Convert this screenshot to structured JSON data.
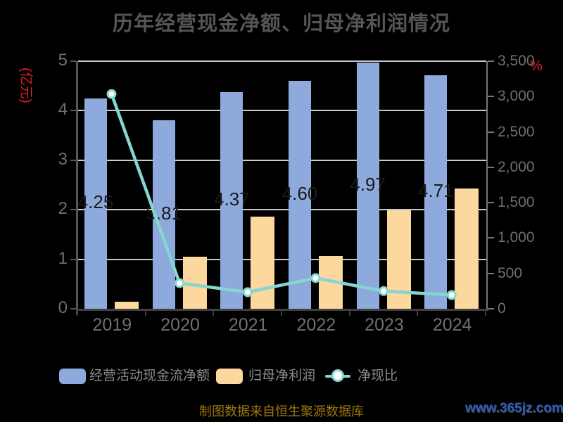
{
  "title": "历年经营现金净额、归母净利润情况",
  "left_axis": {
    "unit_label": "(亿元)",
    "ticks": [
      "5",
      "4",
      "3",
      "2",
      "1",
      "0"
    ],
    "color": "#e02121"
  },
  "right_axis": {
    "unit_label": "%",
    "ticks": [
      "3,500",
      "3,000",
      "2,500",
      "2,000",
      "1,500",
      "1,000",
      "500",
      "0"
    ],
    "color": "#e02121"
  },
  "legend": [
    {
      "label": "经营活动现金流净额",
      "type": "bar",
      "color": "#8EA9DB"
    },
    {
      "label": "归母净利润",
      "type": "bar",
      "color": "#FCD79E"
    },
    {
      "label": "净现比",
      "type": "line",
      "color": "#85D5D1"
    }
  ],
  "footer": {
    "source": "制图数据来自恒生聚源数据库",
    "watermark": "www.365jz.com"
  },
  "colors": {
    "background": "#000000",
    "title": "#555555",
    "axis_text": "#6f6f6f",
    "cash_bar": "#8EA9DB",
    "profit_bar": "#FCD79E",
    "ratio_line": "#85D5D1",
    "marker_fill": "#ffffff",
    "gridline": "#c9c9c9",
    "bar_value_label": "#1b1b1b"
  },
  "chart_data": {
    "type": "bar+line",
    "categories": [
      "2019",
      "2020",
      "2021",
      "2022",
      "2023",
      "2024"
    ],
    "series": [
      {
        "name": "经营活动现金流净额",
        "type": "bar",
        "axis": "left",
        "color": "#8EA9DB",
        "values": [
          4.25,
          3.81,
          4.37,
          4.6,
          4.97,
          4.71
        ],
        "labels": [
          "4.25",
          "3.81",
          "4.37",
          "4.60",
          "4.97",
          "4.71"
        ]
      },
      {
        "name": "归母净利润",
        "type": "bar",
        "axis": "left",
        "color": "#FCD79E",
        "values": [
          0.14,
          1.05,
          1.86,
          1.06,
          1.99,
          2.43
        ]
      },
      {
        "name": "净现比",
        "type": "line",
        "axis": "right",
        "color": "#85D5D1",
        "values": [
          3036,
          363,
          235,
          434,
          250,
          194
        ]
      }
    ],
    "left_ylabel": "(亿元)",
    "right_ylabel": "%",
    "left_ylim": [
      0,
      5
    ],
    "right_ylim": [
      0,
      3500
    ],
    "grid": true,
    "legend_position": "bottom"
  }
}
